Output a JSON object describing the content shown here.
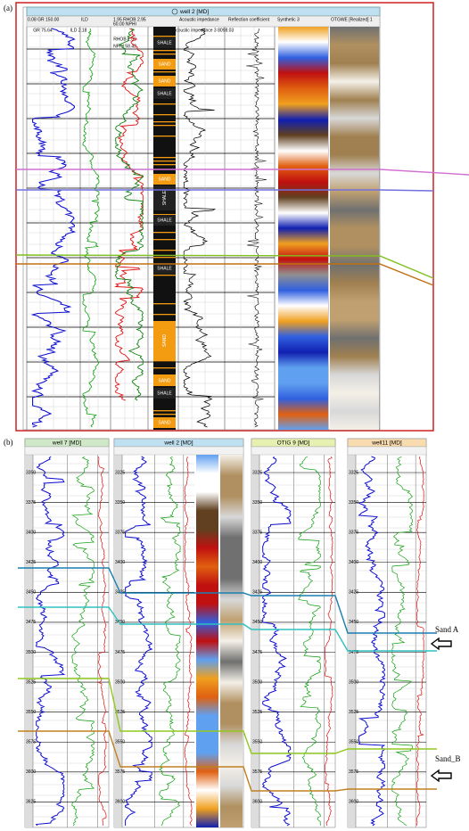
{
  "panel_a": {
    "label": "(a)",
    "well_title": "well 2 [MD]",
    "track_headers": [
      "0.08  GR  150.00",
      "ILD",
      "1.95 RHOB 2.95",
      "60.00 NPHI",
      "Acoustic impedance",
      "Reflection coefficient",
      "Synthetic 3",
      "OTGWE [Realized] 1"
    ],
    "readouts": [
      "GR 75.64",
      "ILD 2.18",
      "RHOB 2.39",
      "NPHI 58.42",
      "Acoustic impedance 3 8098.03"
    ],
    "lithology": [
      {
        "label": "SHALE",
        "pos": "h"
      },
      {
        "label": "SAND",
        "pos": "h"
      },
      {
        "label": "SAND",
        "pos": "h"
      },
      {
        "label": "SHALE",
        "pos": "h"
      },
      {
        "label": "SAND",
        "pos": "h"
      },
      {
        "label": "SHALE",
        "pos": "v"
      },
      {
        "label": "SHALE",
        "pos": "h"
      },
      {
        "label": "SHALE",
        "pos": "h"
      },
      {
        "label": "SAND",
        "pos": "v"
      },
      {
        "label": "SAND",
        "pos": "h"
      },
      {
        "label": "SHALE",
        "pos": "h"
      },
      {
        "label": "SAND",
        "pos": "h"
      }
    ]
  },
  "panel_b": {
    "label": "(b)",
    "wells": [
      {
        "title": "well 7 [MD]",
        "depths": [
          "3350",
          "3375",
          "3400",
          "3425",
          "3450",
          "3475",
          "3500",
          "3525",
          "3550",
          "3575",
          "3600",
          "3625"
        ]
      },
      {
        "title": "well 2 [MD]",
        "depths": [
          "3325",
          "3350",
          "3375",
          "3400",
          "3425",
          "3450",
          "3475",
          "3500",
          "3525",
          "3550",
          "3575",
          "3600"
        ]
      },
      {
        "title": "OTIG 9 [MD]",
        "depths": [
          "3325",
          "3350",
          "3375",
          "3400",
          "3425",
          "3450",
          "3475",
          "3500",
          "3525",
          "3550",
          "3575",
          "3600"
        ]
      },
      {
        "title": "well11 [MD]",
        "depths": [
          "3325",
          "3350",
          "3375",
          "3400",
          "3425",
          "3450",
          "3475",
          "3500",
          "3525",
          "3550",
          "3575",
          "3600"
        ]
      }
    ],
    "annotations": [
      "Sand A",
      "Sand_B"
    ]
  }
}
